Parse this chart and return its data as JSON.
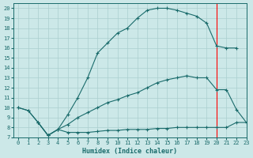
{
  "xlabel": "Humidex (Indice chaleur)",
  "bg_color": "#cce8e8",
  "line_color": "#1a6b6b",
  "grid_color": "#aacfcf",
  "xlim": [
    -0.5,
    23
  ],
  "ylim": [
    7,
    20.5
  ],
  "xticks": [
    0,
    1,
    2,
    3,
    4,
    5,
    6,
    7,
    8,
    9,
    10,
    11,
    12,
    13,
    14,
    15,
    16,
    17,
    18,
    19,
    20,
    21,
    22,
    23
  ],
  "yticks": [
    7,
    8,
    9,
    10,
    11,
    12,
    13,
    14,
    15,
    16,
    17,
    18,
    19,
    20
  ],
  "line1_x": [
    0,
    1,
    2,
    3,
    4,
    5,
    6,
    7,
    8,
    9,
    10,
    11,
    12,
    13,
    14,
    15,
    16,
    17,
    18,
    19,
    20,
    21,
    22
  ],
  "line1_y": [
    10,
    9.7,
    8.5,
    7.2,
    7.8,
    9.3,
    11.0,
    13.0,
    15.5,
    16.5,
    17.5,
    18.0,
    19.0,
    19.8,
    20.0,
    20.0,
    19.8,
    19.5,
    19.2,
    18.5,
    16.2,
    16.0,
    16.0
  ],
  "line2_x": [
    2,
    3,
    4,
    5,
    6,
    7,
    8,
    9,
    10,
    11,
    12,
    13,
    14,
    15,
    16,
    17,
    18,
    19,
    20,
    21,
    22,
    23
  ],
  "line2_y": [
    8.5,
    7.2,
    7.8,
    8.3,
    9.0,
    9.5,
    10.0,
    10.5,
    10.8,
    11.2,
    11.5,
    12.0,
    12.5,
    12.8,
    13.0,
    13.2,
    13.0,
    13.0,
    11.8,
    11.8,
    9.8,
    8.5
  ],
  "line3_x": [
    0,
    1,
    2,
    3,
    4,
    5,
    6,
    7,
    8,
    9,
    10,
    11,
    12,
    13,
    14,
    15,
    16,
    17,
    18,
    19,
    20,
    21,
    22,
    23
  ],
  "line3_y": [
    10.0,
    9.7,
    8.5,
    7.2,
    7.8,
    7.5,
    7.5,
    7.5,
    7.6,
    7.7,
    7.7,
    7.8,
    7.8,
    7.8,
    7.9,
    7.9,
    8.0,
    8.0,
    8.0,
    8.0,
    8.0,
    8.0,
    8.5,
    8.5
  ]
}
